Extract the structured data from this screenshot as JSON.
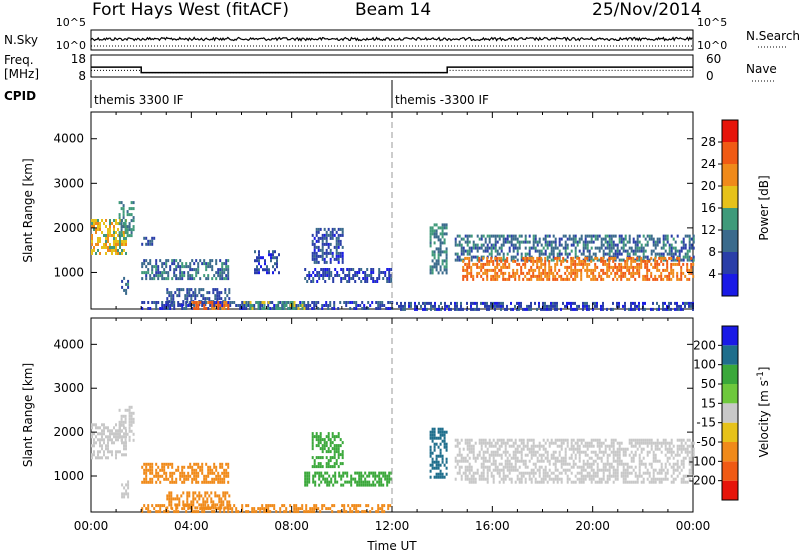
{
  "header": {
    "station": "Fort Hays West (fitACF)",
    "beam": "Beam 14",
    "date": "25/Nov/2014"
  },
  "labels": {
    "nsky": "N.Sky",
    "freq_line1": "Freq.",
    "freq_line2": "[MHz]",
    "cpid": "CPID",
    "nsearch": "N.Search",
    "nave": "Nave",
    "range_axis": "Slant Range [km]",
    "time_axis": "Time UT",
    "power_cbar": "Power [dB]",
    "velocity_cbar": "Velocity [m s",
    "velocity_cbar_sup": "-1",
    "velocity_cbar_end": "]"
  },
  "colors": {
    "power": [
      "#1a1ae6",
      "#2a3ea8",
      "#3a6a8c",
      "#3f9a7a",
      "#e6c21a",
      "#f08a1a",
      "#f05a14",
      "#e6140a"
    ],
    "velocity": [
      "#e6140a",
      "#f05a14",
      "#f08a1a",
      "#e6c21a",
      "#c8c8c8",
      "#6ec83c",
      "#3aa83a",
      "#1f6e8c",
      "#1a1ae6"
    ],
    "ground_scatter": "#c8c8c8"
  },
  "chart_data": [
    {
      "type": "line",
      "name": "n-sky",
      "ylabel": "N.Sky",
      "y_right_label": "N.Search",
      "yticks_left": [
        "10^5",
        "10^0"
      ],
      "yticks_right": [
        "10^5",
        "10^0"
      ],
      "series": [
        {
          "label": "N.Sky",
          "value": 1000,
          "style": "solid"
        },
        {
          "label": "N.Search",
          "value": 1000,
          "style": "dotted"
        }
      ]
    },
    {
      "type": "line",
      "name": "frequency",
      "ylabel": "Freq. [MHz]",
      "yticks_left": [
        18,
        8
      ],
      "yticks_right": [
        60,
        0
      ],
      "freq_steps": [
        {
          "start_hr": 0,
          "end_hr": 2,
          "mhz": 12.5
        },
        {
          "start_hr": 2,
          "end_hr": 14.2,
          "mhz": 10
        },
        {
          "start_hr": 14.2,
          "end_hr": 24,
          "mhz": 12.5
        }
      ],
      "nave": [
        {
          "start_hr": 0,
          "end_hr": 2,
          "value": 18
        },
        {
          "start_hr": 2,
          "end_hr": 14.2,
          "value": 12
        },
        {
          "start_hr": 14.2,
          "end_hr": 24,
          "value": 18
        }
      ]
    },
    {
      "type": "table",
      "name": "cpid",
      "segments": [
        {
          "start_hr": 0,
          "label": "themis 3300 IF"
        },
        {
          "start_hr": 12,
          "label": "themis -3300 IF"
        }
      ]
    },
    {
      "type": "heatmap",
      "name": "power",
      "ylabel": "Slant Range [km]",
      "yticks": [
        1000,
        2000,
        3000,
        4000
      ],
      "ylim": [
        180,
        4600
      ],
      "xlim": [
        0,
        24
      ],
      "colorbar_ticks": [
        4,
        8,
        12,
        16,
        20,
        24,
        28
      ],
      "colorbar_range": [
        0,
        32
      ],
      "colorbar_label": "Power [dB]",
      "echo_regions": [
        {
          "t0": 0,
          "t1": 1.4,
          "r0": 1400,
          "r1": 2200,
          "value": 18
        },
        {
          "t0": 1.1,
          "t1": 1.7,
          "r0": 1800,
          "r1": 2600,
          "value": 12
        },
        {
          "t0": 1.2,
          "t1": 1.5,
          "r0": 500,
          "r1": 900,
          "value": 10
        },
        {
          "t0": 2.0,
          "t1": 2.5,
          "r0": 1600,
          "r1": 1800,
          "value": 8
        },
        {
          "t0": 2.0,
          "t1": 5.5,
          "r0": 850,
          "r1": 1300,
          "value": 10
        },
        {
          "t0": 3.0,
          "t1": 5.5,
          "r0": 300,
          "r1": 650,
          "value": 8
        },
        {
          "t0": 2.0,
          "t1": 12.0,
          "r0": 200,
          "r1": 360,
          "value": 6
        },
        {
          "t0": 4.0,
          "t1": 5.5,
          "r0": 200,
          "r1": 360,
          "value": 24
        },
        {
          "t0": 6.0,
          "t1": 8.5,
          "r0": 200,
          "r1": 360,
          "value": 14
        },
        {
          "t0": 6.5,
          "t1": 7.5,
          "r0": 1000,
          "r1": 1500,
          "value": 6
        },
        {
          "t0": 8.8,
          "t1": 10.0,
          "r0": 1200,
          "r1": 2000,
          "value": 7
        },
        {
          "t0": 8.5,
          "t1": 12.0,
          "r0": 800,
          "r1": 1100,
          "value": 6
        },
        {
          "t0": 12.0,
          "t1": 24.0,
          "r0": 200,
          "r1": 340,
          "value": 6
        },
        {
          "t0": 13.5,
          "t1": 14.2,
          "r0": 1000,
          "r1": 2100,
          "value": 12
        },
        {
          "t0": 14.5,
          "t1": 24.0,
          "r0": 1250,
          "r1": 1850,
          "value": 10
        },
        {
          "t0": 14.8,
          "t1": 24.0,
          "r0": 850,
          "r1": 1350,
          "value": 24
        }
      ]
    },
    {
      "type": "heatmap",
      "name": "velocity",
      "ylabel": "Slant Range [km]",
      "yticks": [
        1000,
        2000,
        3000,
        4000
      ],
      "ylim": [
        180,
        4600
      ],
      "xlim": [
        0,
        24
      ],
      "xticks": [
        "00:00",
        "04:00",
        "08:00",
        "12:00",
        "16:00",
        "20:00",
        "00:00"
      ],
      "xlabel": "Time UT",
      "colorbar_ticks": [
        200,
        100,
        50,
        15,
        -15,
        -50,
        -100,
        -200
      ],
      "colorbar_label": "Velocity [m s-1]",
      "echo_regions": [
        {
          "t0": 0,
          "t1": 1.4,
          "r0": 1400,
          "r1": 2200,
          "value": 0
        },
        {
          "t0": 1.1,
          "t1": 1.7,
          "r0": 1800,
          "r1": 2600,
          "value": 0
        },
        {
          "t0": 1.2,
          "t1": 1.5,
          "r0": 500,
          "r1": 900,
          "value": 0
        },
        {
          "t0": 2.0,
          "t1": 5.5,
          "r0": 850,
          "r1": 1300,
          "value": -60
        },
        {
          "t0": 3.0,
          "t1": 5.5,
          "r0": 300,
          "r1": 650,
          "value": -60
        },
        {
          "t0": 2.0,
          "t1": 12.0,
          "r0": 200,
          "r1": 360,
          "value": -70
        },
        {
          "t0": 8.8,
          "t1": 10.0,
          "r0": 1200,
          "r1": 2000,
          "value": 60
        },
        {
          "t0": 8.5,
          "t1": 12.0,
          "r0": 800,
          "r1": 1100,
          "value": 60
        },
        {
          "t0": 13.5,
          "t1": 14.2,
          "r0": 1000,
          "r1": 2100,
          "value": 80
        },
        {
          "t0": 14.5,
          "t1": 24.0,
          "r0": 850,
          "r1": 1850,
          "value": 0
        }
      ]
    }
  ]
}
